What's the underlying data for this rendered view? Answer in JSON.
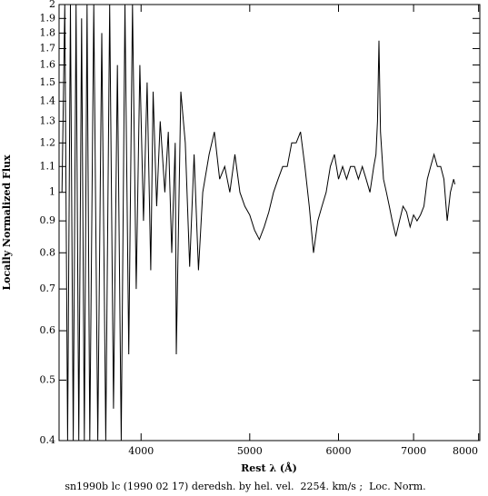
{
  "chart_data": {
    "type": "line",
    "title": "sn1990b lc (1990 02 17) deredsh. by hel. vel.  2254. km/s ;  Loc. Norm.",
    "x_label": "Rest λ (Å)",
    "y_label": "Locally Normalized Flux",
    "xscale": "log",
    "yscale": "log",
    "color": "#000000",
    "xlim": [
      3380,
      8020
    ],
    "ylim": [
      0.4,
      2
    ],
    "xticks": [
      4000,
      5000,
      6000,
      7000,
      8000
    ],
    "yticks": [
      0.4,
      0.5,
      0.6,
      0.7,
      0.8,
      0.9,
      1,
      1.1,
      1.2,
      1.3,
      1.4,
      1.5,
      1.6,
      1.7,
      1.8,
      1.9,
      2
    ],
    "x": [
      3400,
      3420,
      3440,
      3460,
      3480,
      3500,
      3520,
      3540,
      3560,
      3580,
      3600,
      3630,
      3660,
      3690,
      3720,
      3750,
      3780,
      3810,
      3840,
      3870,
      3900,
      3930,
      3960,
      3990,
      4020,
      4050,
      4080,
      4100,
      4130,
      4160,
      4200,
      4230,
      4260,
      4290,
      4300,
      4340,
      4380,
      4420,
      4460,
      4500,
      4540,
      4600,
      4650,
      4700,
      4750,
      4800,
      4850,
      4900,
      4950,
      5000,
      5050,
      5100,
      5150,
      5200,
      5250,
      5300,
      5350,
      5400,
      5450,
      5500,
      5550,
      5600,
      5650,
      5700,
      5750,
      5800,
      5850,
      5900,
      5950,
      6000,
      6050,
      6100,
      6150,
      6200,
      6250,
      6300,
      6350,
      6400,
      6450,
      6480,
      6500,
      6520,
      6540,
      6580,
      6620,
      6660,
      6700,
      6750,
      6800,
      6850,
      6900,
      6950,
      7000,
      7050,
      7100,
      7150,
      7200,
      7250,
      7300,
      7350,
      7400,
      7450,
      7500,
      7550,
      7600,
      7620
    ],
    "values": [
      1.0,
      2,
      0.4,
      2,
      0.4,
      2,
      0.4,
      1.9,
      0.4,
      2,
      0.4,
      2,
      0.4,
      1.8,
      0.4,
      2,
      0.45,
      1.6,
      0.4,
      2,
      0.55,
      2,
      0.7,
      1.6,
      0.9,
      1.5,
      0.75,
      1.45,
      0.95,
      1.3,
      1.0,
      1.25,
      0.8,
      1.2,
      0.55,
      1.45,
      1.2,
      0.76,
      1.15,
      0.75,
      1.0,
      1.15,
      1.25,
      1.05,
      1.1,
      1.0,
      1.15,
      1.0,
      0.95,
      0.92,
      0.87,
      0.84,
      0.88,
      0.93,
      1.0,
      1.05,
      1.1,
      1.1,
      1.2,
      1.2,
      1.25,
      1.1,
      0.95,
      0.8,
      0.9,
      0.95,
      1.0,
      1.1,
      1.15,
      1.05,
      1.1,
      1.05,
      1.1,
      1.1,
      1.05,
      1.1,
      1.05,
      1.0,
      1.1,
      1.15,
      1.3,
      1.75,
      1.25,
      1.05,
      1.0,
      0.95,
      0.9,
      0.85,
      0.9,
      0.95,
      0.93,
      0.88,
      0.92,
      0.9,
      0.92,
      0.95,
      1.05,
      1.1,
      1.15,
      1.1,
      1.1,
      1.05,
      0.9,
      1.0,
      1.05,
      1.03
    ]
  }
}
